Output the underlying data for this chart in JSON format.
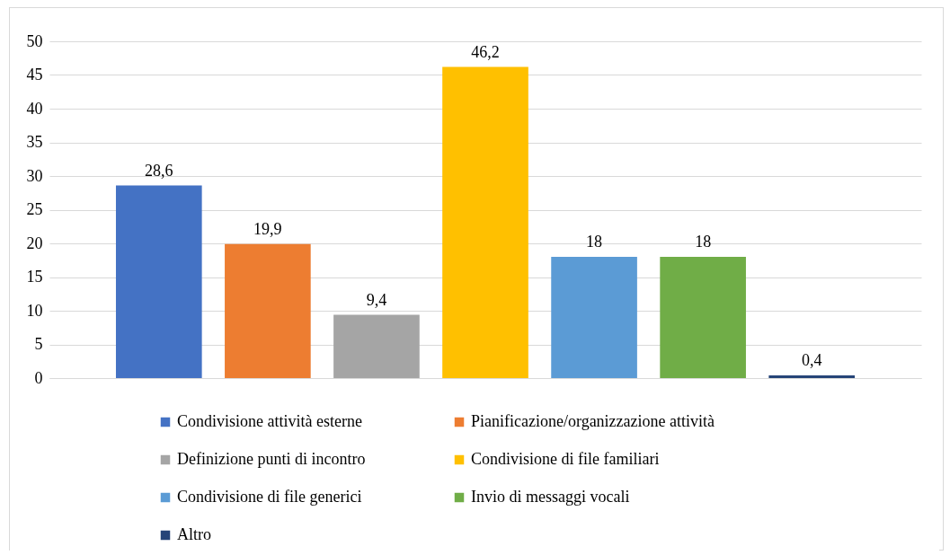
{
  "chart_data": {
    "type": "bar",
    "categories": [
      null
    ],
    "series": [
      {
        "name": "Condivisione attività esterne",
        "color": "#4472c4",
        "values": [
          28.6
        ],
        "value_labels": [
          "28,6"
        ]
      },
      {
        "name": "Pianificazione/organizzazione attività",
        "color": "#ed7d31",
        "values": [
          19.9
        ],
        "value_labels": [
          "19,9"
        ]
      },
      {
        "name": "Definizione punti di incontro",
        "color": "#a5a5a5",
        "values": [
          9.4
        ],
        "value_labels": [
          "9,4"
        ]
      },
      {
        "name": "Condivisione di file familiari",
        "color": "#ffc000",
        "values": [
          46.2
        ],
        "value_labels": [
          "46,2"
        ]
      },
      {
        "name": "Condivisione di file generici",
        "color": "#5b9bd5",
        "values": [
          18
        ],
        "value_labels": [
          "18"
        ]
      },
      {
        "name": "Invio di messaggi vocali",
        "color": "#70ad47",
        "values": [
          18
        ],
        "value_labels": [
          "18"
        ]
      },
      {
        "name": "Altro",
        "color": "#264478",
        "values": [
          0.4
        ],
        "value_labels": [
          "0,4"
        ]
      }
    ],
    "ylim": [
      0,
      50
    ],
    "yticks": [
      0,
      5,
      10,
      15,
      20,
      25,
      30,
      35,
      40,
      45,
      50
    ],
    "grid": "y",
    "legend": "bottom"
  }
}
